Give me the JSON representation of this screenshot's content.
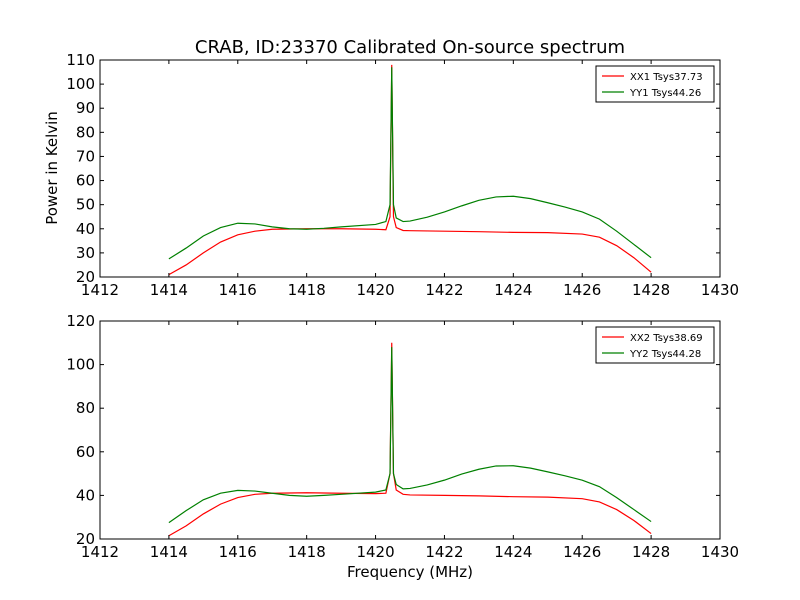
{
  "chart_data": [
    {
      "type": "line",
      "title": "CRAB, ID:23370 Calibrated On-source spectrum",
      "xlabel": "",
      "ylabel": "Power in Kelvin",
      "xlim": [
        1412,
        1430
      ],
      "ylim": [
        20,
        110
      ],
      "xticks": [
        "1412",
        "1414",
        "1416",
        "1418",
        "1420",
        "1422",
        "1424",
        "1426",
        "1428",
        "1430"
      ],
      "yticks": [
        "20",
        "30",
        "40",
        "50",
        "60",
        "70",
        "80",
        "90",
        "100",
        "110"
      ],
      "legend_position": "top-right",
      "series": [
        {
          "name": "XX1 Tsys37.73",
          "color": "#ff0000",
          "points": [
            [
              1414.0,
              21
            ],
            [
              1414.5,
              25
            ],
            [
              1415.0,
              30
            ],
            [
              1415.5,
              34.5
            ],
            [
              1416.0,
              37.5
            ],
            [
              1416.5,
              39
            ],
            [
              1417.0,
              39.8
            ],
            [
              1418.0,
              40
            ],
            [
              1419.0,
              40
            ],
            [
              1420.0,
              39.8
            ],
            [
              1420.3,
              39.6
            ],
            [
              1420.42,
              45
            ],
            [
              1420.47,
              108
            ],
            [
              1420.52,
              45
            ],
            [
              1420.6,
              40.5
            ],
            [
              1420.8,
              39.3
            ],
            [
              1421.0,
              39.2
            ],
            [
              1422.0,
              39
            ],
            [
              1423.0,
              38.8
            ],
            [
              1424.0,
              38.5
            ],
            [
              1425.0,
              38.4
            ],
            [
              1426.0,
              37.8
            ],
            [
              1426.5,
              36.5
            ],
            [
              1427.0,
              33
            ],
            [
              1427.5,
              28
            ],
            [
              1428.0,
              22
            ]
          ]
        },
        {
          "name": "YY1 Tsys44.26",
          "color": "#008000",
          "points": [
            [
              1414.0,
              27.5
            ],
            [
              1414.5,
              32
            ],
            [
              1415.0,
              37
            ],
            [
              1415.5,
              40.5
            ],
            [
              1416.0,
              42.3
            ],
            [
              1416.5,
              42
            ],
            [
              1417.0,
              40.8
            ],
            [
              1417.5,
              40
            ],
            [
              1418.0,
              39.8
            ],
            [
              1418.5,
              40.2
            ],
            [
              1419.0,
              40.8
            ],
            [
              1420.0,
              41.8
            ],
            [
              1420.3,
              43
            ],
            [
              1420.42,
              50
            ],
            [
              1420.47,
              107
            ],
            [
              1420.52,
              50
            ],
            [
              1420.6,
              44.5
            ],
            [
              1420.8,
              43
            ],
            [
              1421.0,
              43.2
            ],
            [
              1421.5,
              44.8
            ],
            [
              1422.0,
              47
            ],
            [
              1422.5,
              49.5
            ],
            [
              1423.0,
              51.8
            ],
            [
              1423.5,
              53.2
            ],
            [
              1424.0,
              53.5
            ],
            [
              1424.5,
              52.5
            ],
            [
              1425.0,
              50.8
            ],
            [
              1425.5,
              49
            ],
            [
              1426.0,
              47
            ],
            [
              1426.5,
              44
            ],
            [
              1427.0,
              39
            ],
            [
              1427.5,
              33.5
            ],
            [
              1428.0,
              28
            ]
          ]
        }
      ]
    },
    {
      "type": "line",
      "title": "",
      "xlabel": "Frequency (MHz)",
      "ylabel": "",
      "xlim": [
        1412,
        1430
      ],
      "ylim": [
        20,
        120
      ],
      "xticks": [
        "1412",
        "1414",
        "1416",
        "1418",
        "1420",
        "1422",
        "1424",
        "1426",
        "1428",
        "1430"
      ],
      "yticks": [
        "20",
        "40",
        "60",
        "80",
        "100",
        "120"
      ],
      "legend_position": "top-right",
      "series": [
        {
          "name": "XX2 Tsys38.69",
          "color": "#ff0000",
          "points": [
            [
              1414.0,
              21.5
            ],
            [
              1414.5,
              26
            ],
            [
              1415.0,
              31.5
            ],
            [
              1415.5,
              36
            ],
            [
              1416.0,
              39
            ],
            [
              1416.5,
              40.5
            ],
            [
              1417.0,
              41
            ],
            [
              1418.0,
              41.2
            ],
            [
              1419.0,
              41
            ],
            [
              1420.0,
              40.8
            ],
            [
              1420.3,
              41
            ],
            [
              1420.42,
              50
            ],
            [
              1420.47,
              110
            ],
            [
              1420.52,
              50
            ],
            [
              1420.6,
              42.5
            ],
            [
              1420.8,
              40.5
            ],
            [
              1421.0,
              40.2
            ],
            [
              1422.0,
              40
            ],
            [
              1423.0,
              39.8
            ],
            [
              1424.0,
              39.4
            ],
            [
              1425.0,
              39.2
            ],
            [
              1426.0,
              38.5
            ],
            [
              1426.5,
              37
            ],
            [
              1427.0,
              33.5
            ],
            [
              1427.5,
              28.5
            ],
            [
              1428.0,
              22.5
            ]
          ]
        },
        {
          "name": "YY2 Tsys44.28",
          "color": "#008000",
          "points": [
            [
              1414.0,
              27.5
            ],
            [
              1414.5,
              33
            ],
            [
              1415.0,
              38
            ],
            [
              1415.5,
              41
            ],
            [
              1416.0,
              42.3
            ],
            [
              1416.5,
              42
            ],
            [
              1417.0,
              41
            ],
            [
              1417.5,
              40
            ],
            [
              1418.0,
              39.6
            ],
            [
              1418.5,
              40
            ],
            [
              1419.0,
              40.5
            ],
            [
              1420.0,
              41.5
            ],
            [
              1420.3,
              42.5
            ],
            [
              1420.42,
              50
            ],
            [
              1420.47,
              108
            ],
            [
              1420.52,
              50
            ],
            [
              1420.6,
              45
            ],
            [
              1420.8,
              43
            ],
            [
              1421.0,
              43.2
            ],
            [
              1421.5,
              44.8
            ],
            [
              1422.0,
              47
            ],
            [
              1422.5,
              49.8
            ],
            [
              1423.0,
              52
            ],
            [
              1423.5,
              53.5
            ],
            [
              1424.0,
              53.6
            ],
            [
              1424.5,
              52.5
            ],
            [
              1425.0,
              50.8
            ],
            [
              1425.5,
              49
            ],
            [
              1426.0,
              47
            ],
            [
              1426.5,
              44
            ],
            [
              1427.0,
              39
            ],
            [
              1427.5,
              33.5
            ],
            [
              1428.0,
              28
            ]
          ]
        }
      ]
    }
  ]
}
